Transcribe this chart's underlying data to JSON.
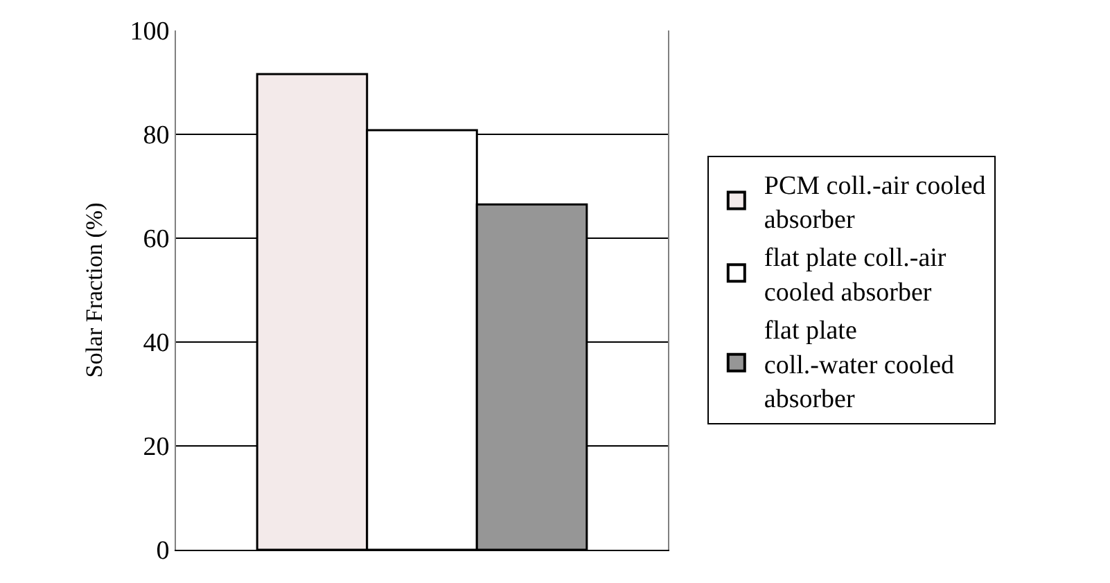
{
  "chart_data": {
    "type": "bar",
    "ylabel": "Solar Fraction (%)",
    "categories": [
      null
    ],
    "series": [
      {
        "name": "PCM coll.-air cooled absorber",
        "color": "#f3eaea",
        "values": [
          91.6
        ]
      },
      {
        "name": "flat plate coll.-air cooled absorber",
        "color": "#ffffff",
        "values": [
          80.8
        ]
      },
      {
        "name": "flat plate coll.-water cooled absorber",
        "color": "#969696",
        "values": [
          66.5
        ]
      }
    ],
    "ylim": [
      0,
      100
    ],
    "yticks": [
      0,
      20,
      40,
      60,
      80,
      100
    ],
    "grid": "y",
    "legend": "right"
  }
}
